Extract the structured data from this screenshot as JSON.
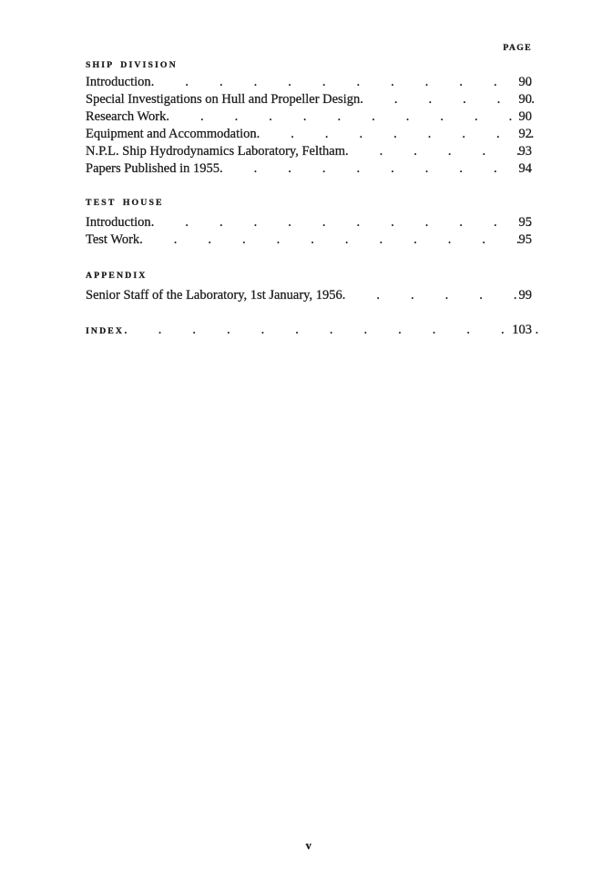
{
  "colors": {
    "paper": "#ffffff",
    "ink": "#1e1e1e"
  },
  "page_header": {
    "label": "PAGE"
  },
  "toc": {
    "sections": [
      {
        "heading": "SHIP DIVISION",
        "entries": [
          {
            "title": "Introduction",
            "page": "90"
          },
          {
            "title": "Special Investigations on Hull and Propeller Design",
            "page": "90"
          },
          {
            "title": "Research Work",
            "page": "90"
          },
          {
            "title": "Equipment and Accommodation",
            "page": "92"
          },
          {
            "title": "N.P.L. Ship Hydrodynamics Laboratory, Feltham",
            "page": "93"
          },
          {
            "title": "Papers Published in 1955",
            "page": "94"
          }
        ]
      },
      {
        "heading": "TEST HOUSE",
        "entries": [
          {
            "title": "Introduction",
            "page": "95"
          },
          {
            "title": "Test Work",
            "page": "95"
          }
        ]
      },
      {
        "heading": "APPENDIX",
        "entries": [
          {
            "title": "Senior Staff of the Laboratory, 1st January, 1956",
            "page": "99"
          }
        ]
      },
      {
        "heading": "INDEX",
        "page": "103",
        "entries": []
      }
    ]
  },
  "folio": "v"
}
